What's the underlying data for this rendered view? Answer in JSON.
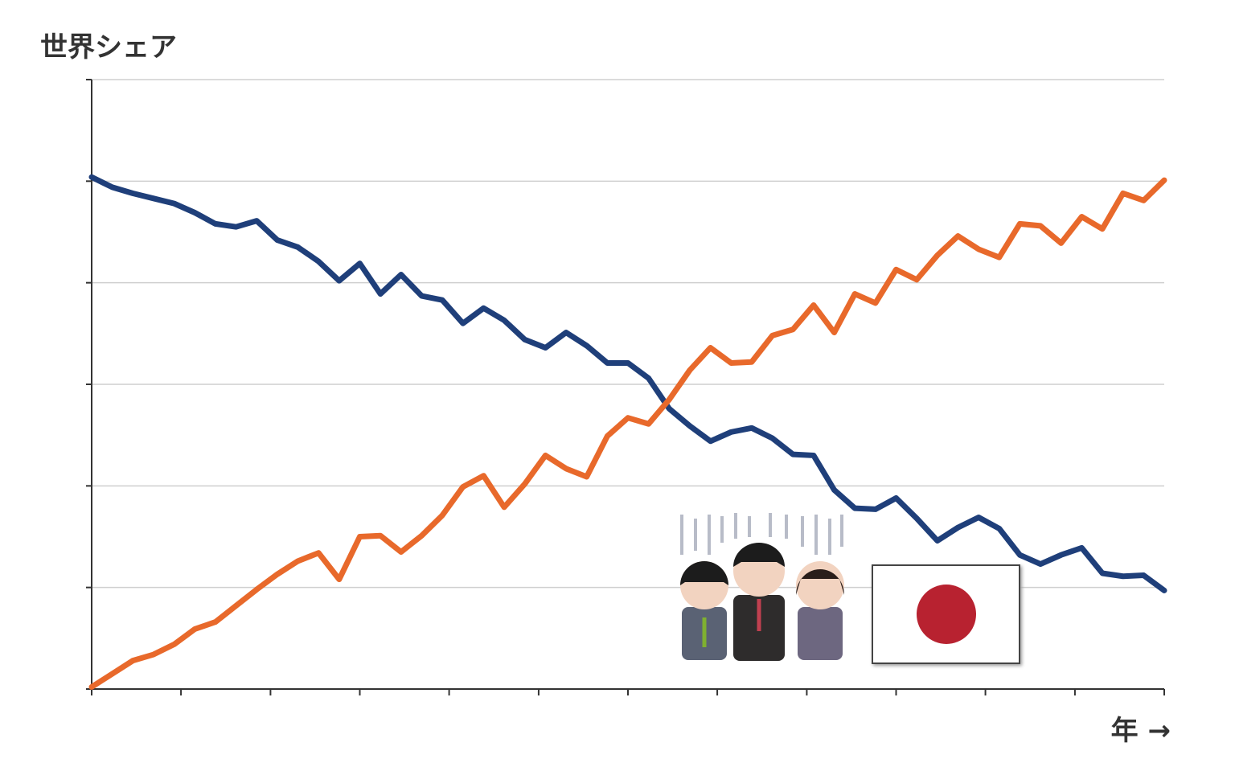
{
  "chart_data": {
    "type": "line",
    "y_label": "世界シェア",
    "x_label": "年 →",
    "x": [
      0,
      1,
      2,
      3,
      4,
      5,
      6,
      7,
      8,
      9,
      10,
      11,
      12,
      13,
      14,
      15,
      16,
      17,
      18,
      19,
      20,
      21,
      22,
      23,
      24,
      25,
      26,
      27,
      28,
      29,
      30,
      31,
      32,
      33,
      34,
      35,
      36,
      37,
      38,
      39,
      40,
      41,
      42,
      43,
      44,
      45,
      46,
      47,
      48,
      49,
      50,
      51,
      52
    ],
    "xlim": [
      0,
      52
    ],
    "xticks": [
      0,
      4.33,
      8.67,
      13,
      17.33,
      21.67,
      26,
      30.33,
      34.67,
      39,
      43.33,
      47.67,
      52
    ],
    "ylim": [
      0,
      6
    ],
    "yticks": [
      0,
      1,
      2,
      3,
      4,
      5,
      6
    ],
    "grid": true,
    "series": [
      {
        "color": "#1f3f7a",
        "values": [
          5.04,
          4.94,
          4.88,
          4.83,
          4.78,
          4.69,
          4.58,
          4.55,
          4.61,
          4.42,
          4.35,
          4.21,
          4.02,
          4.19,
          3.89,
          4.08,
          3.87,
          3.83,
          3.6,
          3.75,
          3.63,
          3.44,
          3.36,
          3.51,
          3.38,
          3.21,
          3.21,
          3.06,
          2.76,
          2.59,
          2.44,
          2.53,
          2.57,
          2.47,
          2.31,
          2.3,
          1.96,
          1.78,
          1.77,
          1.88,
          1.68,
          1.46,
          1.59,
          1.69,
          1.58,
          1.32,
          1.23,
          1.32,
          1.39,
          1.14,
          1.11,
          1.12,
          0.97
        ]
      },
      {
        "color": "#e8692b",
        "values": [
          0.02,
          0.15,
          0.28,
          0.34,
          0.44,
          0.59,
          0.66,
          0.82,
          0.98,
          1.13,
          1.26,
          1.34,
          1.08,
          1.5,
          1.51,
          1.35,
          1.51,
          1.71,
          1.99,
          2.1,
          1.79,
          2.02,
          2.3,
          2.17,
          2.09,
          2.49,
          2.67,
          2.61,
          2.85,
          3.14,
          3.36,
          3.21,
          3.22,
          3.48,
          3.54,
          3.78,
          3.51,
          3.89,
          3.8,
          4.13,
          4.03,
          4.27,
          4.46,
          4.33,
          4.25,
          4.58,
          4.56,
          4.39,
          4.65,
          4.53,
          4.88,
          4.81,
          5.01
        ]
      }
    ]
  }
}
